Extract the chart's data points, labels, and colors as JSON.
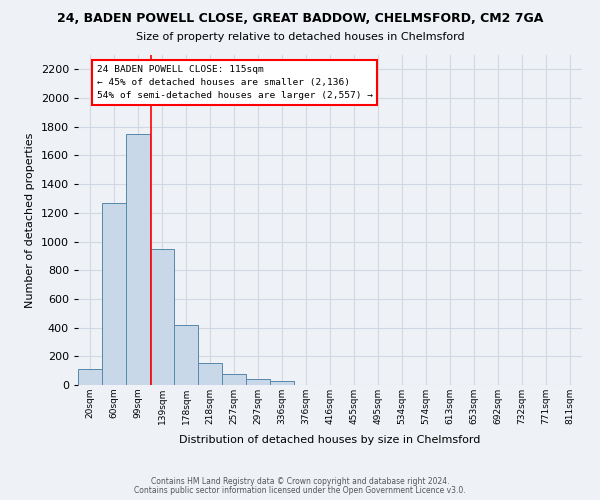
{
  "title1": "24, BADEN POWELL CLOSE, GREAT BADDOW, CHELMSFORD, CM2 7GA",
  "title2": "Size of property relative to detached houses in Chelmsford",
  "xlabel": "Distribution of detached houses by size in Chelmsford",
  "ylabel": "Number of detached properties",
  "bin_labels": [
    "20sqm",
    "60sqm",
    "99sqm",
    "139sqm",
    "178sqm",
    "218sqm",
    "257sqm",
    "297sqm",
    "336sqm",
    "376sqm",
    "416sqm",
    "455sqm",
    "495sqm",
    "534sqm",
    "574sqm",
    "613sqm",
    "653sqm",
    "692sqm",
    "732sqm",
    "771sqm",
    "811sqm"
  ],
  "bar_values": [
    110,
    1270,
    1750,
    950,
    415,
    150,
    80,
    45,
    25,
    0,
    0,
    0,
    0,
    0,
    0,
    0,
    0,
    0,
    0,
    0,
    0
  ],
  "bar_color": "#c8d8e8",
  "bar_edge_color": "#5588aa",
  "ylim": [
    0,
    2300
  ],
  "yticks": [
    0,
    200,
    400,
    600,
    800,
    1000,
    1200,
    1400,
    1600,
    1800,
    2000,
    2200
  ],
  "property_line_x": 2.55,
  "annotation_line1": "24 BADEN POWELL CLOSE: 115sqm",
  "annotation_line2": "← 45% of detached houses are smaller (2,136)",
  "annotation_line3": "54% of semi-detached houses are larger (2,557) →",
  "footnote1": "Contains HM Land Registry data © Crown copyright and database right 2024.",
  "footnote2": "Contains public sector information licensed under the Open Government Licence v3.0.",
  "bg_color": "#eef2f7",
  "grid_color": "#d0d8e4"
}
